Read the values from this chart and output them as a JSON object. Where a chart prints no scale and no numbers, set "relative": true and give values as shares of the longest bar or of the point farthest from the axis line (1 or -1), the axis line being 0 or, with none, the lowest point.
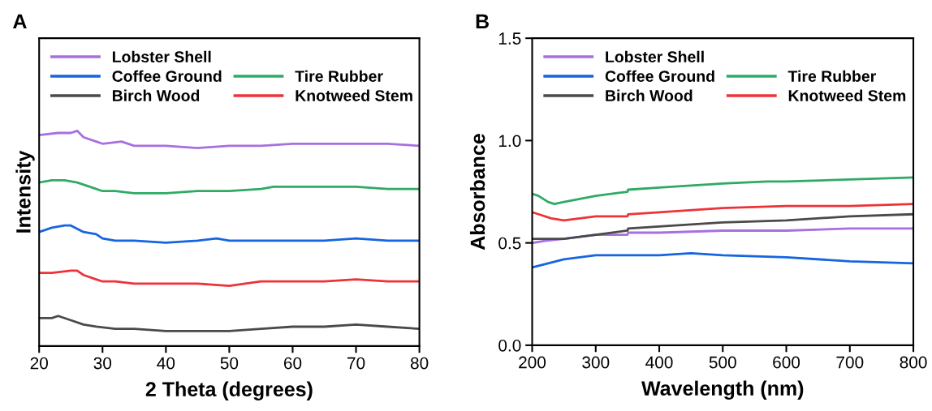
{
  "chart_data": [
    {
      "type": "line",
      "title": "A",
      "xlabel": "2 Theta (degrees)",
      "ylabel": "Intensity",
      "relative": true,
      "xlim": [
        20,
        80
      ],
      "xticks": [
        20,
        30,
        40,
        50,
        60,
        70,
        80
      ],
      "legend": "top left",
      "grid": false,
      "tick_labels": "x",
      "series": [
        {
          "name": "Lobster Shell",
          "color": "#a86fe0",
          "x": [
            20,
            23,
            25,
            26,
            27,
            29,
            30,
            33,
            35,
            40,
            45,
            50,
            55,
            60,
            65,
            70,
            75,
            80
          ],
          "values": [
            0.98,
            0.99,
            0.99,
            1.0,
            0.97,
            0.95,
            0.94,
            0.95,
            0.93,
            0.93,
            0.92,
            0.93,
            0.93,
            0.94,
            0.94,
            0.94,
            0.94,
            0.93
          ]
        },
        {
          "name": "Coffee Ground",
          "color": "#1565e0",
          "x": [
            20,
            22,
            24,
            25,
            27,
            29,
            30,
            32,
            35,
            40,
            45,
            48,
            50,
            55,
            60,
            65,
            70,
            75,
            80
          ],
          "values": [
            0.53,
            0.55,
            0.56,
            0.56,
            0.53,
            0.52,
            0.5,
            0.49,
            0.49,
            0.48,
            0.49,
            0.5,
            0.49,
            0.49,
            0.49,
            0.49,
            0.5,
            0.49,
            0.49
          ]
        },
        {
          "name": "Tire Rubber",
          "color": "#2faa64",
          "x": [
            20,
            22,
            24,
            26,
            28,
            30,
            32,
            35,
            40,
            45,
            50,
            55,
            57,
            60,
            65,
            70,
            75,
            80
          ],
          "values": [
            0.76,
            0.77,
            0.77,
            0.76,
            0.74,
            0.72,
            0.72,
            0.71,
            0.71,
            0.72,
            0.72,
            0.73,
            0.74,
            0.74,
            0.74,
            0.74,
            0.73,
            0.73
          ]
        },
        {
          "name": "Birch Wood",
          "color": "#4a4a4a",
          "x": [
            20,
            22,
            23,
            25,
            27,
            29,
            32,
            35,
            40,
            45,
            50,
            55,
            60,
            65,
            70,
            75,
            80
          ],
          "values": [
            0.13,
            0.13,
            0.14,
            0.12,
            0.1,
            0.09,
            0.08,
            0.08,
            0.07,
            0.07,
            0.07,
            0.08,
            0.09,
            0.09,
            0.1,
            0.09,
            0.08
          ]
        },
        {
          "name": "Knotweed Stem",
          "color": "#ee3338",
          "x": [
            20,
            22,
            25,
            26,
            27,
            29,
            30,
            32,
            35,
            40,
            45,
            50,
            55,
            60,
            65,
            70,
            75,
            80
          ],
          "values": [
            0.34,
            0.34,
            0.35,
            0.35,
            0.33,
            0.31,
            0.3,
            0.3,
            0.29,
            0.29,
            0.29,
            0.28,
            0.3,
            0.3,
            0.3,
            0.31,
            0.3,
            0.3
          ]
        }
      ]
    },
    {
      "type": "line",
      "title": "B",
      "xlabel": "Wavelength (nm)",
      "ylabel": "Absorbance",
      "xlim": [
        200,
        800
      ],
      "xticks": [
        200,
        300,
        400,
        500,
        600,
        700,
        800
      ],
      "ylim": [
        0,
        1.5
      ],
      "yticks": [
        {
          "value": 0,
          "label": "0.0"
        },
        0.5,
        {
          "value": 1,
          "label": "1.0"
        },
        1.5
      ],
      "legend": "top left",
      "grid": false,
      "series": [
        {
          "name": "Lobster Shell",
          "color": "#a86fe0",
          "x": [
            200,
            220,
            250,
            300,
            350,
            351,
            400,
            500,
            600,
            700,
            800
          ],
          "values": [
            0.5,
            0.51,
            0.52,
            0.54,
            0.54,
            0.55,
            0.55,
            0.56,
            0.56,
            0.57,
            0.57
          ]
        },
        {
          "name": "Coffee Ground",
          "color": "#1565e0",
          "x": [
            200,
            250,
            300,
            400,
            450,
            500,
            600,
            700,
            800
          ],
          "values": [
            0.38,
            0.42,
            0.44,
            0.44,
            0.45,
            0.44,
            0.43,
            0.41,
            0.4
          ]
        },
        {
          "name": "Tire Rubber",
          "color": "#2faa64",
          "x": [
            200,
            210,
            225,
            235,
            250,
            300,
            350,
            351,
            400,
            500,
            570,
            600,
            700,
            800
          ],
          "values": [
            0.74,
            0.73,
            0.7,
            0.69,
            0.7,
            0.73,
            0.75,
            0.76,
            0.77,
            0.79,
            0.8,
            0.8,
            0.81,
            0.82
          ]
        },
        {
          "name": "Birch Wood",
          "color": "#4a4a4a",
          "x": [
            200,
            250,
            300,
            350,
            351,
            400,
            500,
            600,
            700,
            800
          ],
          "values": [
            0.52,
            0.52,
            0.54,
            0.56,
            0.57,
            0.58,
            0.6,
            0.61,
            0.63,
            0.64
          ]
        },
        {
          "name": "Knotweed Stem",
          "color": "#ee3338",
          "x": [
            200,
            210,
            230,
            250,
            300,
            350,
            351,
            400,
            500,
            600,
            700,
            800
          ],
          "values": [
            0.65,
            0.64,
            0.62,
            0.61,
            0.63,
            0.63,
            0.64,
            0.65,
            0.67,
            0.68,
            0.68,
            0.69
          ]
        }
      ]
    }
  ]
}
